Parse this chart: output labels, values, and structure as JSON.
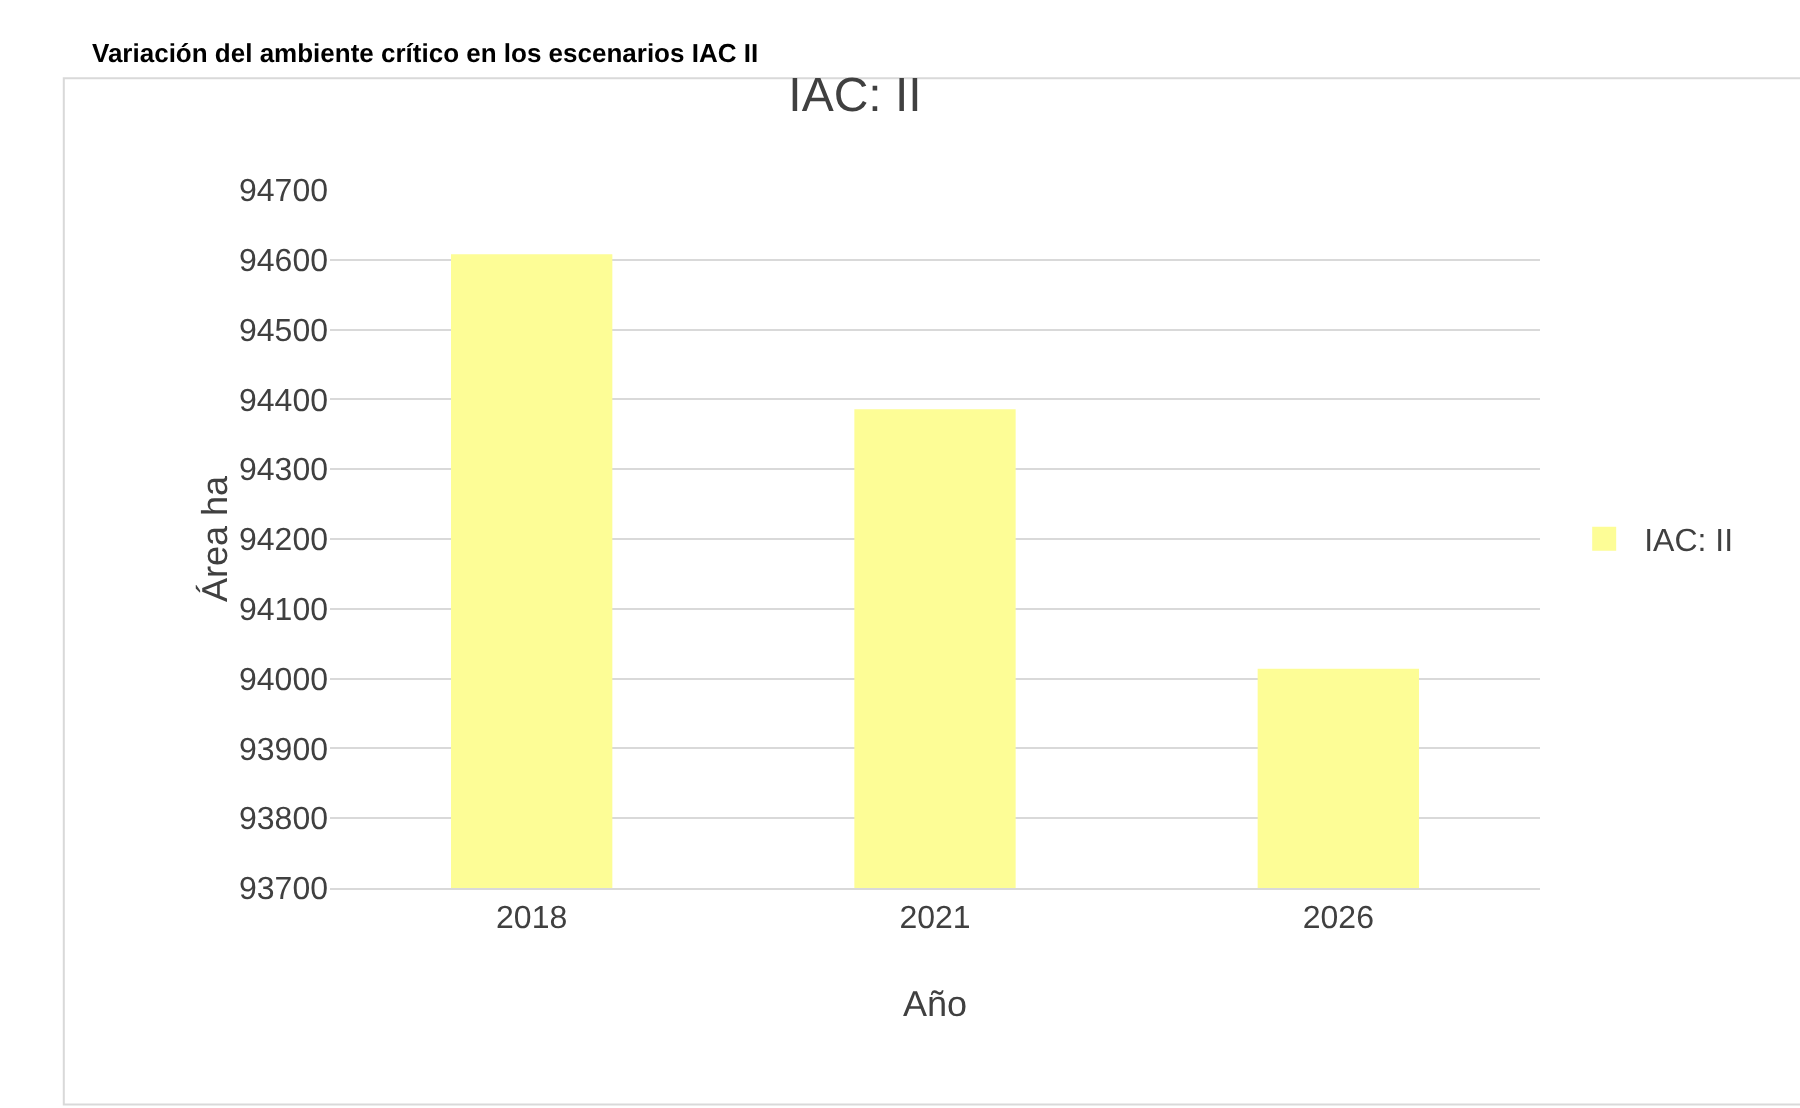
{
  "chart_data": {
    "type": "bar",
    "title": "IAC: II",
    "annotations": [
      "Variación del ambiente crítico en los escenarios IAC II"
    ],
    "xlabel": "Año",
    "ylabel": "Área ha",
    "categories": [
      "2018",
      "2021",
      "2026"
    ],
    "series": [
      {
        "name": "IAC: II",
        "color": "#fdfd96",
        "values": [
          94608,
          94386,
          94014
        ]
      }
    ],
    "ylim": [
      93700,
      94700
    ],
    "yticks": [
      93700,
      93800,
      93900,
      94000,
      94100,
      94200,
      94300,
      94400,
      94500,
      94600,
      94700
    ],
    "grid": "y",
    "legend": "right"
  }
}
